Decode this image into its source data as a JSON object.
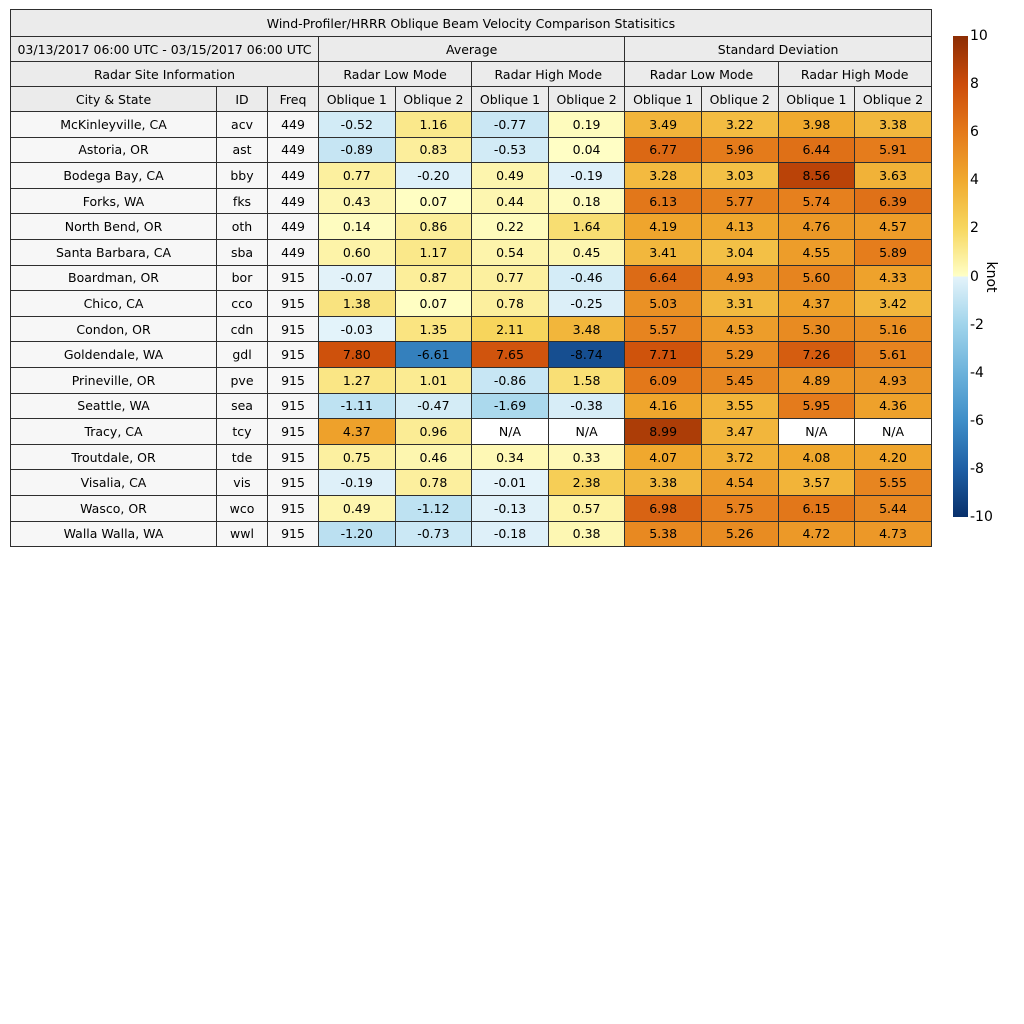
{
  "chart_data": {
    "type": "table",
    "title": "Wind-Profiler/HRRR Oblique Beam Velocity Comparison Statisitics",
    "period": "03/13/2017 06:00 UTC - 03/15/2017 06:00 UTC",
    "group_headers": {
      "site": "Radar Site Information",
      "average": "Average",
      "std_dev": "Standard Deviation"
    },
    "mode_headers": {
      "low": "Radar Low Mode",
      "high": "Radar High Mode"
    },
    "column_headers": {
      "city": "City & State",
      "id": "ID",
      "freq": "Freq",
      "oblique1": "Oblique 1",
      "oblique2": "Oblique 2"
    },
    "na_text": "N/A",
    "rows": [
      {
        "city": "McKinleyville, CA",
        "id": "acv",
        "freq": "449",
        "values": [
          -0.52,
          1.16,
          -0.77,
          0.19,
          3.49,
          3.22,
          3.98,
          3.38
        ]
      },
      {
        "city": "Astoria, OR",
        "id": "ast",
        "freq": "449",
        "values": [
          -0.89,
          0.83,
          -0.53,
          0.04,
          6.77,
          5.96,
          6.44,
          5.91
        ]
      },
      {
        "city": "Bodega Bay, CA",
        "id": "bby",
        "freq": "449",
        "values": [
          0.77,
          -0.2,
          0.49,
          -0.19,
          3.28,
          3.03,
          8.56,
          3.63
        ]
      },
      {
        "city": "Forks, WA",
        "id": "fks",
        "freq": "449",
        "values": [
          0.43,
          0.07,
          0.44,
          0.18,
          6.13,
          5.77,
          5.74,
          6.39
        ]
      },
      {
        "city": "North Bend, OR",
        "id": "oth",
        "freq": "449",
        "values": [
          0.14,
          0.86,
          0.22,
          1.64,
          4.19,
          4.13,
          4.76,
          4.57
        ]
      },
      {
        "city": "Santa Barbara, CA",
        "id": "sba",
        "freq": "449",
        "values": [
          0.6,
          1.17,
          0.54,
          0.45,
          3.41,
          3.04,
          4.55,
          5.89
        ]
      },
      {
        "city": "Boardman, OR",
        "id": "bor",
        "freq": "915",
        "values": [
          -0.07,
          0.87,
          0.77,
          -0.46,
          6.64,
          4.93,
          5.6,
          4.33
        ]
      },
      {
        "city": "Chico, CA",
        "id": "cco",
        "freq": "915",
        "values": [
          1.38,
          0.07,
          0.78,
          -0.25,
          5.03,
          3.31,
          4.37,
          3.42
        ]
      },
      {
        "city": "Condon, OR",
        "id": "cdn",
        "freq": "915",
        "values": [
          -0.03,
          1.35,
          2.11,
          3.48,
          5.57,
          4.53,
          5.3,
          5.16
        ]
      },
      {
        "city": "Goldendale, WA",
        "id": "gdl",
        "freq": "915",
        "values": [
          7.8,
          -6.61,
          7.65,
          -8.74,
          7.71,
          5.29,
          7.26,
          5.61
        ]
      },
      {
        "city": "Prineville, OR",
        "id": "pve",
        "freq": "915",
        "values": [
          1.27,
          1.01,
          -0.86,
          1.58,
          6.09,
          5.45,
          4.89,
          4.93
        ]
      },
      {
        "city": "Seattle, WA",
        "id": "sea",
        "freq": "915",
        "values": [
          -1.11,
          -0.47,
          -1.69,
          -0.38,
          4.16,
          3.55,
          5.95,
          4.36
        ]
      },
      {
        "city": "Tracy, CA",
        "id": "tcy",
        "freq": "915",
        "values": [
          4.37,
          0.96,
          null,
          null,
          8.99,
          3.47,
          null,
          null
        ]
      },
      {
        "city": "Troutdale, OR",
        "id": "tde",
        "freq": "915",
        "values": [
          0.75,
          0.46,
          0.34,
          0.33,
          4.07,
          3.72,
          4.08,
          4.2
        ]
      },
      {
        "city": "Visalia, CA",
        "id": "vis",
        "freq": "915",
        "values": [
          -0.19,
          0.78,
          -0.01,
          2.38,
          3.38,
          4.54,
          3.57,
          5.55
        ]
      },
      {
        "city": "Wasco, OR",
        "id": "wco",
        "freq": "915",
        "values": [
          0.49,
          -1.12,
          -0.13,
          0.57,
          6.98,
          5.75,
          6.15,
          5.44
        ]
      },
      {
        "city": "Walla Walla, WA",
        "id": "wwl",
        "freq": "915",
        "values": [
          -1.2,
          -0.73,
          -0.18,
          0.38,
          5.38,
          5.26,
          4.72,
          4.73
        ]
      }
    ],
    "colorbar": {
      "label": "knot",
      "ticks": [
        10,
        8,
        6,
        4,
        2,
        0,
        -2,
        -4,
        -6,
        -8,
        -10
      ],
      "min": -10,
      "max": 10
    },
    "colormap": {
      "positive_anchors": [
        [
          0,
          "#ffffc7"
        ],
        [
          2,
          "#f7d75f"
        ],
        [
          4,
          "#f0aa2f"
        ],
        [
          6,
          "#e47a1b"
        ],
        [
          8,
          "#cc4c0a"
        ],
        [
          10,
          "#8c2d04"
        ]
      ],
      "negative_anchors": [
        [
          0,
          "#e4f3fa"
        ],
        [
          2,
          "#a0d4eb"
        ],
        [
          4,
          "#6cb2db"
        ],
        [
          6,
          "#3e8ec8"
        ],
        [
          8,
          "#1e5fa5"
        ],
        [
          10,
          "#08306b"
        ]
      ]
    },
    "styles": {
      "header_bg": "#ebebeb",
      "row_label_bg": "#f7f7f7",
      "na_bg": "#ffffff",
      "border": "#2e2e2e",
      "text": "#000000"
    }
  }
}
